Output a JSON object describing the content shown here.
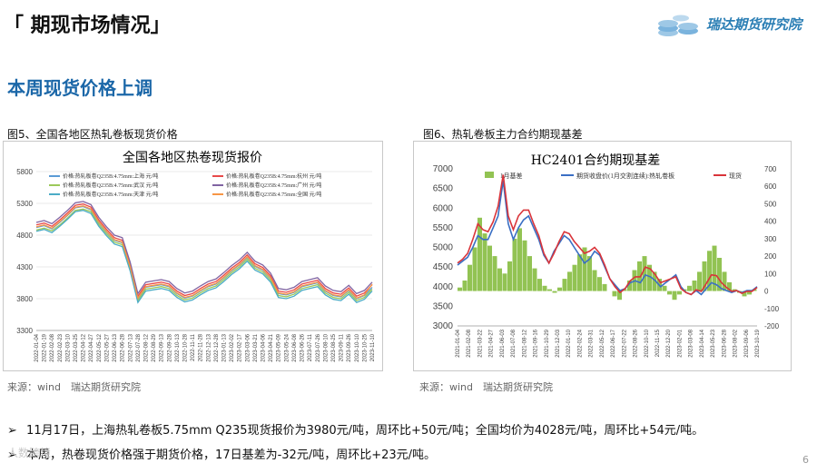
{
  "header": {
    "title": "「 期现市场情况」",
    "brand": "瑞达期货研究院"
  },
  "section_title": "本周现货价格上调",
  "figures": [
    {
      "caption": "图5、全国各地区热轧卷板现货价格",
      "source": "来源：wind　瑞达期货研究院"
    },
    {
      "caption": "图6、热轧卷板主力合约期现基差",
      "source": "来源：wind　瑞达期货研究院"
    }
  ],
  "bullets": [
    "11月17日，上海热轧卷板5.75mm Q235现货报价为3980元/吨，周环比+50元/吨；全国均价为4028元/吨，周环比+54元/吨。",
    "本周，热卷现货价格强于期货价格，17日基差为-32元/吨，周环比+23元/吨。"
  ],
  "page_number": "6",
  "watermark": "人数跨境",
  "chart_data": [
    {
      "type": "line",
      "title": "全国各地区热卷现货报价",
      "ylim": [
        3300,
        5800
      ],
      "yticks": [
        "5800",
        "5300",
        "4800",
        "4300",
        "3800",
        "3300"
      ],
      "xticks": [
        "2022-01-04",
        "2022-01-19",
        "2022-02-08",
        "2022-02-23",
        "2022-03-10",
        "2022-03-25",
        "2022-04-12",
        "2022-04-27",
        "2022-05-12",
        "2022-05-27",
        "2022-06-13",
        "2022-06-28",
        "2022-07-13",
        "2022-07-28",
        "2022-08-12",
        "2022-08-29",
        "2022-09-13",
        "2022-09-28",
        "2022-10-13",
        "2022-10-28",
        "2022-11-11",
        "2022-11-28",
        "2022-12-13",
        "2022-12-28",
        "2023-01-13",
        "2023-02-02",
        "2023-02-17",
        "2023-03-06",
        "2023-03-21",
        "2023-04-06",
        "2023-04-21",
        "2023-05-09",
        "2023-05-24",
        "2023-06-08",
        "2023-06-26",
        "2023-07-11",
        "2023-07-26",
        "2023-08-10",
        "2023-08-25",
        "2023-09-11",
        "2023-09-26",
        "2023-10-10",
        "2023-10-25",
        "2023-11-10"
      ],
      "series": [
        {
          "name": "价格:热轧板卷Q235B:4.75mm:上海 元/吨",
          "color": "#5b9bd5",
          "values": [
            4920,
            4950,
            4900,
            5000,
            5110,
            5230,
            5250,
            5200,
            5000,
            4850,
            4720,
            4680,
            4300,
            3800,
            3980,
            4000,
            4020,
            3990,
            3880,
            3810,
            3840,
            3920,
            3990,
            4030,
            4130,
            4240,
            4330,
            4450,
            4310,
            4250,
            4120,
            3880,
            3860,
            3900,
            3990,
            4020,
            4050,
            3920,
            3850,
            3830,
            3930,
            3800,
            3850,
            3980
          ]
        },
        {
          "name": "价格:热轧板卷Q235B:4.75mm:杭州 元/吨",
          "color": "#e84a4a",
          "values": [
            4960,
            4990,
            4940,
            5040,
            5150,
            5270,
            5290,
            5240,
            5040,
            4890,
            4760,
            4720,
            4340,
            3840,
            4020,
            4040,
            4060,
            4030,
            3920,
            3850,
            3880,
            3960,
            4030,
            4070,
            4170,
            4280,
            4370,
            4490,
            4350,
            4290,
            4160,
            3920,
            3900,
            3940,
            4030,
            4060,
            4090,
            3960,
            3890,
            3870,
            3970,
            3840,
            3890,
            4020
          ]
        },
        {
          "name": "价格:热轧板卷Q235B:4.75mm:武汉 元/吨",
          "color": "#9cc95a",
          "values": [
            4880,
            4910,
            4870,
            4960,
            5070,
            5190,
            5210,
            5170,
            4970,
            4820,
            4690,
            4650,
            4270,
            3770,
            3950,
            3970,
            3990,
            3960,
            3850,
            3780,
            3810,
            3890,
            3960,
            4000,
            4100,
            4210,
            4300,
            4420,
            4280,
            4220,
            4090,
            3850,
            3830,
            3870,
            3960,
            3990,
            4020,
            3890,
            3820,
            3800,
            3900,
            3770,
            3820,
            3950
          ]
        },
        {
          "name": "价格:热轧板卷Q235B:4.75mm:广州 元/吨",
          "color": "#8064a2",
          "values": [
            5000,
            5030,
            4980,
            5080,
            5190,
            5310,
            5330,
            5280,
            5080,
            4930,
            4800,
            4760,
            4380,
            3880,
            4060,
            4080,
            4100,
            4070,
            3960,
            3890,
            3920,
            4000,
            4070,
            4110,
            4210,
            4320,
            4410,
            4530,
            4390,
            4330,
            4200,
            3960,
            3940,
            3980,
            4070,
            4100,
            4130,
            4000,
            3930,
            3910,
            4010,
            3880,
            3930,
            4060
          ]
        },
        {
          "name": "价格:热轧板卷Q235B:4.75mm:天津 元/吨",
          "color": "#4bacc6",
          "values": [
            4860,
            4890,
            4840,
            4940,
            5050,
            5170,
            5190,
            5140,
            4940,
            4790,
            4660,
            4620,
            4240,
            3740,
            3920,
            3940,
            3960,
            3930,
            3820,
            3750,
            3780,
            3860,
            3930,
            3970,
            4070,
            4180,
            4270,
            4390,
            4250,
            4190,
            4060,
            3820,
            3800,
            3840,
            3930,
            3960,
            3990,
            3860,
            3790,
            3770,
            3870,
            3740,
            3790,
            3920
          ]
        },
        {
          "name": "价格:热轧板卷Q235B:4.75mm:全国 元/吨",
          "color": "#f79646",
          "values": [
            4930,
            4960,
            4910,
            5010,
            5120,
            5240,
            5260,
            5210,
            5010,
            4860,
            4730,
            4690,
            4310,
            3810,
            3990,
            4010,
            4030,
            4000,
            3890,
            3820,
            3850,
            3930,
            4000,
            4040,
            4140,
            4250,
            4340,
            4460,
            4320,
            4260,
            4130,
            3890,
            3870,
            3910,
            4000,
            4030,
            4060,
            3930,
            3860,
            3840,
            3940,
            3810,
            3860,
            4028
          ]
        }
      ]
    },
    {
      "type": "line",
      "title": "HC2401合约期现基差",
      "ylim": [
        3000,
        7000
      ],
      "y2lim": [
        -200,
        700
      ],
      "yticks": [
        "7000",
        "6500",
        "6000",
        "5500",
        "5000",
        "4500",
        "4000",
        "3500",
        "3000"
      ],
      "y2ticks": [
        "700",
        "600",
        "500",
        "400",
        "300",
        "200",
        "100",
        "0",
        "-100",
        "-200"
      ],
      "xticks": [
        "2021-01-04",
        "2021-02-08",
        "2021-03-22",
        "2021-04-27",
        "2021-06-03",
        "2021-07-08",
        "2021-08-12",
        "2021-09-16",
        "2021-10-29",
        "2021-12-03",
        "2022-01-10",
        "2022-02-24",
        "2022-03-31",
        "2022-05-12",
        "2022-06-17",
        "2022-07-22",
        "2022-08-26",
        "2022-10-10",
        "2022-11-15",
        "2022-12-20",
        "2023-02-01",
        "2023-03-08",
        "2023-04-14",
        "2023-05-23",
        "2023-06-28",
        "2023-08-02",
        "2023-09-06",
        "2023-10-19"
      ],
      "series": [
        {
          "name": "1月基差",
          "color": "#92c353",
          "axis": "right",
          "render": "bar",
          "values": [
            20,
            60,
            150,
            250,
            420,
            330,
            260,
            200,
            130,
            100,
            170,
            300,
            360,
            290,
            200,
            130,
            70,
            30,
            10,
            -10,
            20,
            70,
            110,
            150,
            210,
            250,
            200,
            120,
            80,
            40,
            0,
            -30,
            -50,
            10,
            60,
            120,
            170,
            200,
            150,
            110,
            70,
            30,
            -20,
            -50,
            -20,
            10,
            30,
            60,
            110,
            170,
            230,
            260,
            190,
            110,
            50,
            10,
            -10,
            -30,
            -20,
            10
          ]
        },
        {
          "name": "期货收盘价(1月交割连续):热轧卷板",
          "color": "#3a6fc4",
          "axis": "left",
          "values": [
            4550,
            4650,
            4750,
            5000,
            5300,
            5200,
            5200,
            5500,
            5800,
            6700,
            5600,
            5200,
            5500,
            5700,
            5800,
            5500,
            5200,
            4800,
            4600,
            4900,
            5100,
            5300,
            5200,
            5000,
            4800,
            4600,
            4700,
            4900,
            4800,
            4500,
            4200,
            4050,
            3900,
            3950,
            4100,
            4150,
            4100,
            4300,
            4250,
            4150,
            4000,
            4100,
            4200,
            4300,
            4000,
            3850,
            3800,
            3900,
            3800,
            3950,
            4100,
            4050,
            3950,
            3900,
            3850,
            3900,
            3850,
            3900,
            3900,
            4000
          ]
        },
        {
          "name": "现货",
          "color": "#d9343a",
          "axis": "left",
          "values": [
            4600,
            4700,
            4850,
            5200,
            5600,
            5450,
            5400,
            5650,
            6050,
            6850,
            5800,
            5450,
            5800,
            5950,
            5950,
            5600,
            5300,
            4850,
            4600,
            4850,
            5150,
            5400,
            5350,
            5150,
            5000,
            4850,
            4900,
            5000,
            4850,
            4550,
            4200,
            4000,
            3850,
            3950,
            4150,
            4250,
            4250,
            4500,
            4450,
            4300,
            4100,
            4150,
            4200,
            4250,
            3950,
            3850,
            3800,
            3920,
            3880,
            4080,
            4300,
            4280,
            4100,
            3980,
            3880,
            3900,
            3830,
            3880,
            3880,
            3980
          ]
        }
      ]
    }
  ]
}
